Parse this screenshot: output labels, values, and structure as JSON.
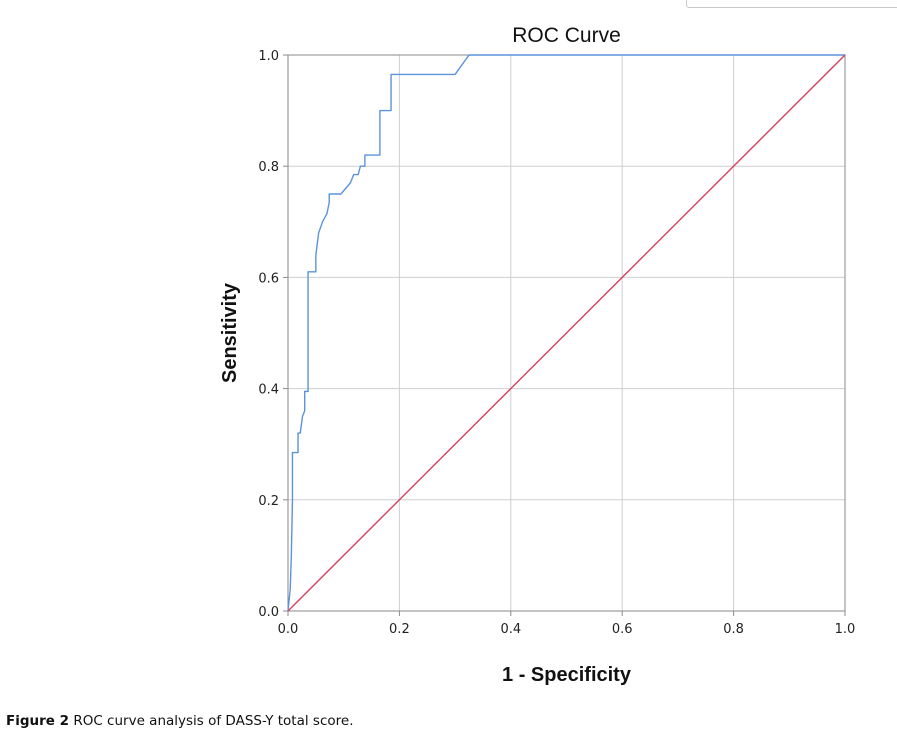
{
  "chart_data": {
    "type": "line",
    "title": "ROC Curve",
    "xlabel": "1 - Specificity",
    "ylabel": "Sensitivity",
    "xlim": [
      0,
      1
    ],
    "ylim": [
      0,
      1
    ],
    "xticks": [
      "0.0",
      "0.2",
      "0.4",
      "0.6",
      "0.8",
      "1.0"
    ],
    "yticks": [
      "0.0",
      "0.2",
      "0.4",
      "0.6",
      "0.8",
      "1.0"
    ],
    "grid": true,
    "legend": "none",
    "series": [
      {
        "color": "#5b93dd",
        "x": [
          0.0,
          0.004,
          0.006,
          0.008,
          0.008,
          0.018,
          0.018,
          0.022,
          0.026,
          0.03,
          0.03,
          0.036,
          0.036,
          0.05,
          0.05,
          0.055,
          0.062,
          0.07,
          0.074,
          0.074,
          0.095,
          0.112,
          0.118,
          0.126,
          0.13,
          0.138,
          0.138,
          0.165,
          0.165,
          0.185,
          0.185,
          0.3,
          0.325,
          1.0
        ],
        "y": [
          0.0,
          0.04,
          0.1,
          0.2,
          0.285,
          0.285,
          0.32,
          0.32,
          0.35,
          0.36,
          0.395,
          0.395,
          0.61,
          0.61,
          0.64,
          0.68,
          0.7,
          0.715,
          0.735,
          0.75,
          0.75,
          0.77,
          0.785,
          0.785,
          0.8,
          0.8,
          0.82,
          0.82,
          0.9,
          0.9,
          0.965,
          0.965,
          1.0,
          1.0
        ]
      },
      {
        "color": "#d94060",
        "x": [
          0.0,
          1.0
        ],
        "y": [
          0.0,
          1.0
        ]
      }
    ]
  },
  "caption": {
    "label": "Figure 2",
    "text": "ROC curve analysis of DASS-Y total score."
  }
}
